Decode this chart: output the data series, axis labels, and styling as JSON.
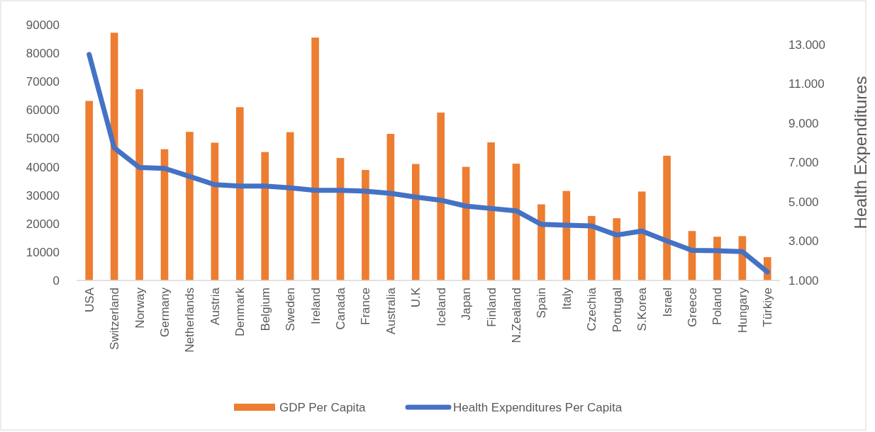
{
  "chart_data": {
    "type": "bar",
    "categories": [
      "USA",
      "Switzerland",
      "Norway",
      "Germany",
      "Netherlands",
      "Austria",
      "Denmark",
      "Belgium",
      "Sweden",
      "Ireland",
      "Canada",
      "France",
      "Australia",
      "U.K",
      "Iceland",
      "Japan",
      "Finland",
      "N.Zealand",
      "Spain",
      "Italy",
      "Czechia",
      "Portugal",
      "S.Korea",
      "Israel",
      "Greece",
      "Poland",
      "Hungary",
      "Türkiye"
    ],
    "series": [
      {
        "name": "GDP Per Capita",
        "color": "#ed7d31",
        "values": [
          63200,
          87200,
          67300,
          46200,
          52300,
          48500,
          61000,
          45200,
          52200,
          85500,
          43100,
          38900,
          51600,
          41000,
          59100,
          40000,
          48600,
          41100,
          26800,
          31500,
          22700,
          21900,
          31300,
          43900,
          17400,
          15400,
          15600,
          8200
        ]
      },
      {
        "name": "Health Expenditures Per Capita",
        "type": "line",
        "axis": "y2",
        "color": "#4472c4",
        "values": [
          12490,
          7740,
          6740,
          6700,
          6290,
          5870,
          5800,
          5800,
          5710,
          5580,
          5580,
          5540,
          5430,
          5240,
          5080,
          4780,
          4660,
          4540,
          3850,
          3810,
          3770,
          3310,
          3510,
          3010,
          2530,
          2510,
          2470,
          1430
        ]
      }
    ],
    "ylim": [
      0,
      90000
    ],
    "yticks": [
      0,
      10000,
      20000,
      30000,
      40000,
      50000,
      60000,
      70000,
      80000,
      90000
    ],
    "y2lim": [
      1000,
      13000
    ],
    "y2ticks": [
      {
        "value": 1000,
        "label": "1.000"
      },
      {
        "value": 3000,
        "label": "3.000"
      },
      {
        "value": 5000,
        "label": "5.000"
      },
      {
        "value": 7000,
        "label": "7.000"
      },
      {
        "value": 9000,
        "label": "9.000"
      },
      {
        "value": 11000,
        "label": "11.000"
      },
      {
        "value": 13000,
        "label": "13.000"
      }
    ],
    "y2label": "Health Expenditures",
    "legend": "bottom",
    "grid": false,
    "marker": "none",
    "line_style": "solid"
  }
}
